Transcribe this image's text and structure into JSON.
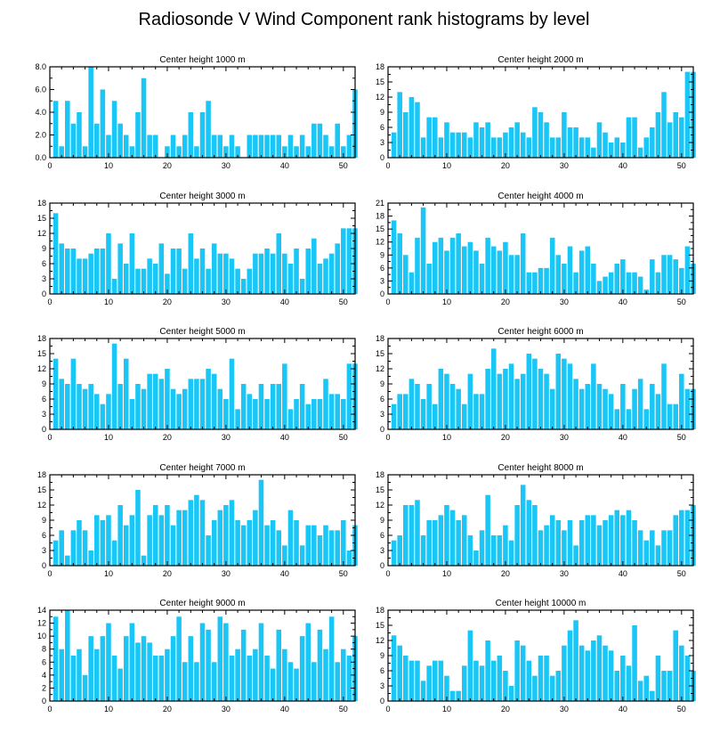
{
  "title": "Radiosonde V Wind Component rank histograms by level",
  "colors": {
    "bar": "#1AC6F5",
    "axis": "#000000",
    "background": "#ffffff"
  },
  "chart_data": [
    {
      "type": "bar",
      "title": "Center height 1000 m",
      "xlim": [
        0,
        52
      ],
      "ylim": [
        0,
        8
      ],
      "xticks": [
        "0",
        "10",
        "20",
        "30",
        "40",
        "50"
      ],
      "yticks": [
        "0.0",
        "2.0",
        "4.0",
        "6.0",
        "8.0"
      ],
      "values": [
        5,
        1,
        5,
        3,
        4,
        1,
        8,
        3,
        6,
        2,
        5,
        3,
        2,
        1,
        4,
        7,
        2,
        2,
        0,
        1,
        2,
        1,
        2,
        4,
        1,
        4,
        5,
        2,
        2,
        1,
        2,
        1,
        0,
        2,
        2,
        2,
        2,
        2,
        2,
        1,
        2,
        1,
        2,
        1,
        3,
        3,
        2,
        1,
        3,
        1,
        2,
        6
      ]
    },
    {
      "type": "bar",
      "title": "Center height 2000 m",
      "xlim": [
        0,
        52
      ],
      "ylim": [
        0,
        18
      ],
      "xticks": [
        "0",
        "10",
        "20",
        "30",
        "40",
        "50"
      ],
      "yticks": [
        "0",
        "3",
        "6",
        "9",
        "12",
        "15",
        "18"
      ],
      "values": [
        5,
        13,
        9,
        12,
        11,
        4,
        8,
        8,
        4,
        7,
        5,
        5,
        5,
        4,
        7,
        6,
        7,
        4,
        4,
        5,
        6,
        7,
        5,
        4,
        10,
        9,
        7,
        4,
        4,
        9,
        6,
        6,
        4,
        4,
        2,
        7,
        5,
        3,
        4,
        3,
        8,
        8,
        2,
        4,
        6,
        9,
        13,
        7,
        9,
        8,
        17,
        17
      ]
    },
    {
      "type": "bar",
      "title": "Center height 3000 m",
      "xlim": [
        0,
        52
      ],
      "ylim": [
        0,
        18
      ],
      "xticks": [
        "0",
        "10",
        "20",
        "30",
        "40",
        "50"
      ],
      "yticks": [
        "0",
        "3",
        "6",
        "9",
        "12",
        "15",
        "18"
      ],
      "values": [
        16,
        10,
        9,
        9,
        7,
        7,
        8,
        9,
        9,
        12,
        3,
        10,
        6,
        12,
        5,
        5,
        7,
        6,
        10,
        4,
        9,
        9,
        5,
        12,
        7,
        9,
        5,
        10,
        8,
        8,
        7,
        5,
        3,
        5,
        8,
        8,
        9,
        8,
        12,
        8,
        6,
        9,
        3,
        9,
        11,
        6,
        7,
        8,
        10,
        13,
        13,
        13
      ]
    },
    {
      "type": "bar",
      "title": "Center height 4000 m",
      "xlim": [
        0,
        52
      ],
      "ylim": [
        0,
        21
      ],
      "xticks": [
        "0",
        "10",
        "20",
        "30",
        "40",
        "50"
      ],
      "yticks": [
        "0",
        "3",
        "6",
        "9",
        "12",
        "15",
        "18",
        "21"
      ],
      "values": [
        17,
        14,
        9,
        5,
        13,
        20,
        7,
        12,
        13,
        10,
        13,
        14,
        11,
        12,
        10,
        7,
        13,
        11,
        10,
        12,
        9,
        9,
        14,
        5,
        5,
        6,
        6,
        13,
        9,
        7,
        11,
        5,
        10,
        11,
        7,
        3,
        4,
        5,
        7,
        8,
        5,
        5,
        4,
        1,
        8,
        5,
        9,
        9,
        8,
        6,
        11,
        7
      ]
    },
    {
      "type": "bar",
      "title": "Center height 5000 m",
      "xlim": [
        0,
        52
      ],
      "ylim": [
        0,
        18
      ],
      "xticks": [
        "0",
        "10",
        "20",
        "30",
        "40",
        "50"
      ],
      "yticks": [
        "0",
        "3",
        "6",
        "9",
        "12",
        "15",
        "18"
      ],
      "values": [
        14,
        10,
        9,
        14,
        9,
        8,
        9,
        7,
        5,
        7,
        17,
        9,
        14,
        6,
        9,
        8,
        11,
        11,
        10,
        12,
        8,
        7,
        8,
        10,
        10,
        10,
        12,
        11,
        8,
        6,
        14,
        4,
        9,
        7,
        6,
        9,
        6,
        9,
        9,
        13,
        4,
        6,
        9,
        5,
        6,
        6,
        10,
        7,
        7,
        6,
        13,
        13
      ]
    },
    {
      "type": "bar",
      "title": "Center height 6000 m",
      "xlim": [
        0,
        52
      ],
      "ylim": [
        0,
        18
      ],
      "xticks": [
        "0",
        "10",
        "20",
        "30",
        "40",
        "50"
      ],
      "yticks": [
        "0",
        "3",
        "6",
        "9",
        "12",
        "15",
        "18"
      ],
      "values": [
        5,
        7,
        7,
        10,
        9,
        6,
        9,
        5,
        12,
        11,
        9,
        8,
        5,
        11,
        7,
        7,
        12,
        16,
        11,
        12,
        13,
        10,
        11,
        15,
        14,
        12,
        11,
        8,
        15,
        14,
        13,
        10,
        8,
        9,
        13,
        9,
        8,
        7,
        4,
        9,
        4,
        8,
        10,
        4,
        9,
        7,
        13,
        5,
        5,
        11,
        8,
        8
      ]
    },
    {
      "type": "bar",
      "title": "Center height 7000 m",
      "xlim": [
        0,
        52
      ],
      "ylim": [
        0,
        18
      ],
      "xticks": [
        "0",
        "10",
        "20",
        "30",
        "40",
        "50"
      ],
      "yticks": [
        "0",
        "3",
        "6",
        "9",
        "12",
        "15",
        "18"
      ],
      "values": [
        5,
        7,
        2,
        7,
        9,
        7,
        3,
        10,
        9,
        10,
        5,
        12,
        8,
        10,
        15,
        2,
        10,
        12,
        10,
        12,
        8,
        11,
        11,
        13,
        14,
        13,
        6,
        9,
        11,
        12,
        13,
        9,
        8,
        9,
        11,
        17,
        8,
        9,
        7,
        4,
        11,
        9,
        4,
        8,
        8,
        6,
        8,
        7,
        7,
        9,
        3,
        8
      ]
    },
    {
      "type": "bar",
      "title": "Center height 8000 m",
      "xlim": [
        0,
        52
      ],
      "ylim": [
        0,
        18
      ],
      "xticks": [
        "0",
        "10",
        "20",
        "30",
        "40",
        "50"
      ],
      "yticks": [
        "0",
        "3",
        "6",
        "9",
        "12",
        "15",
        "18"
      ],
      "values": [
        5,
        6,
        12,
        12,
        13,
        6,
        9,
        9,
        10,
        12,
        11,
        9,
        10,
        6,
        3,
        7,
        14,
        6,
        6,
        8,
        5,
        12,
        16,
        13,
        12,
        7,
        8,
        10,
        9,
        7,
        9,
        4,
        9,
        10,
        10,
        8,
        9,
        10,
        11,
        10,
        11,
        9,
        7,
        5,
        7,
        4,
        7,
        7,
        10,
        11,
        11,
        12
      ]
    },
    {
      "type": "bar",
      "title": "Center height 9000 m",
      "xlim": [
        0,
        52
      ],
      "ylim": [
        0,
        14
      ],
      "xticks": [
        "0",
        "10",
        "20",
        "30",
        "40",
        "50"
      ],
      "yticks": [
        "0",
        "2",
        "4",
        "6",
        "8",
        "10",
        "12",
        "14"
      ],
      "values": [
        13,
        8,
        14,
        7,
        8,
        4,
        10,
        8,
        10,
        12,
        7,
        5,
        10,
        12,
        9,
        10,
        9,
        7,
        7,
        8,
        10,
        13,
        6,
        10,
        6,
        12,
        11,
        6,
        13,
        12,
        7,
        8,
        11,
        7,
        8,
        12,
        7,
        5,
        11,
        8,
        6,
        5,
        10,
        12,
        6,
        11,
        8,
        13,
        6,
        8,
        7,
        10
      ]
    },
    {
      "type": "bar",
      "title": "Center height 10000 m",
      "xlim": [
        0,
        52
      ],
      "ylim": [
        0,
        18
      ],
      "xticks": [
        "0",
        "10",
        "20",
        "30",
        "40",
        "50"
      ],
      "yticks": [
        "0",
        "3",
        "6",
        "9",
        "12",
        "15",
        "18"
      ],
      "values": [
        13,
        11,
        9,
        8,
        8,
        4,
        7,
        8,
        8,
        5,
        2,
        2,
        7,
        14,
        8,
        7,
        12,
        8,
        9,
        6,
        3,
        12,
        11,
        8,
        5,
        9,
        9,
        5,
        6,
        11,
        14,
        16,
        11,
        10,
        12,
        13,
        11,
        10,
        6,
        9,
        7,
        15,
        4,
        5,
        2,
        9,
        6,
        6,
        14,
        11,
        9,
        6
      ]
    }
  ]
}
